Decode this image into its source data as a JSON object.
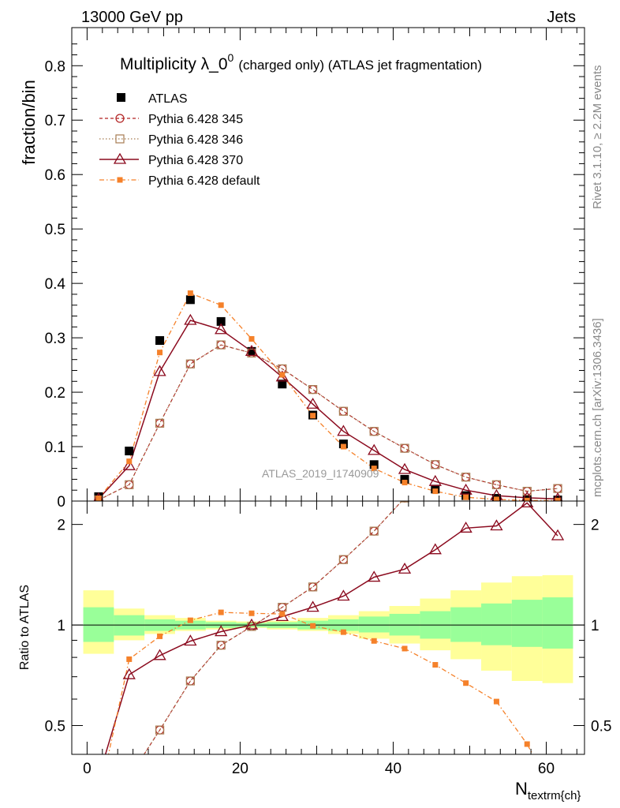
{
  "header": {
    "left": "13000 GeV pp",
    "right": "Jets"
  },
  "side": {
    "rivet": "Rivet 3.1.10, ≥ 2.2M events",
    "mcplots": "mcplots.cern.ch [arXiv:1306.3436]"
  },
  "analysis_id": "ATLAS_2019_I1740909",
  "colors": {
    "atlas": "#000000",
    "p345": "#b22222",
    "p346": "#a67c52",
    "p370": "#8b0a1e",
    "pdefault": "#f5812a",
    "band_inner": "#99ff99",
    "band_outer": "#ffff99"
  },
  "chart_data": [
    {
      "type": "scatter",
      "panel": "main",
      "title_main": "Multiplicity λ_0",
      "title_sup": "0",
      "title_rest": "(charged only) (ATLAS jet fragmentation)",
      "ylabel": "fraction/bin",
      "xlim": [
        -2,
        65
      ],
      "ylim": [
        0,
        0.87
      ],
      "yticks": [
        0,
        0.1,
        0.2,
        0.3,
        0.4,
        0.5,
        0.6,
        0.7,
        0.8
      ],
      "ytick_labels": [
        "0",
        "0.1",
        "0.2",
        "0.3",
        "0.4",
        "0.5",
        "0.6",
        "0.7",
        "0.8"
      ],
      "x": [
        1.5,
        5.5,
        9.5,
        13.5,
        17.5,
        21.5,
        25.5,
        29.5,
        33.5,
        37.5,
        41.5,
        45.5,
        49.5,
        53.5,
        57.5,
        61.5
      ],
      "series": [
        {
          "name": "ATLAS",
          "key": "atlas",
          "values": [
            0.008,
            0.092,
            0.295,
            0.37,
            0.33,
            0.275,
            0.215,
            0.158,
            0.105,
            0.067,
            0.04,
            0.022,
            0.01,
            0.005,
            0.003,
            0.002
          ]
        },
        {
          "name": "Pythia 6.428 345",
          "key": "p345",
          "values": [
            0.002,
            0.03,
            0.143,
            0.252,
            0.287,
            0.272,
            0.243,
            0.205,
            0.165,
            0.128,
            0.097,
            0.067,
            0.044,
            0.03,
            0.018,
            0.023
          ]
        },
        {
          "name": "Pythia 6.428 346",
          "key": "p346",
          "values": [
            0.002,
            0.03,
            0.143,
            0.252,
            0.287,
            0.272,
            0.243,
            0.205,
            0.165,
            0.128,
            0.097,
            0.067,
            0.044,
            0.03,
            0.018,
            0.023
          ]
        },
        {
          "name": "Pythia 6.428 370",
          "key": "p370",
          "values": [
            0.004,
            0.065,
            0.238,
            0.332,
            0.315,
            0.275,
            0.228,
            0.178,
            0.128,
            0.093,
            0.058,
            0.036,
            0.02,
            0.01,
            0.006,
            0.004
          ]
        },
        {
          "name": "Pythia 6.428 default",
          "key": "pdefault",
          "values": [
            0.005,
            0.073,
            0.273,
            0.382,
            0.36,
            0.298,
            0.232,
            0.157,
            0.1,
            0.06,
            0.034,
            0.018,
            0.007,
            0.003,
            0.001,
            0.001
          ]
        }
      ]
    },
    {
      "type": "scatter",
      "panel": "ratio",
      "ylabel": "Ratio to ATLAS",
      "xlabel": "N",
      "xlabel_sub": "textrm{ch}",
      "xlim": [
        -2,
        65
      ],
      "ylim_log": [
        0.41,
        2.35
      ],
      "yticks": [
        0.5,
        1,
        2
      ],
      "ytick_labels": [
        "0.5",
        "1",
        "2"
      ],
      "xticks": [
        0,
        20,
        40,
        60
      ],
      "xtick_labels": [
        "0",
        "20",
        "40",
        "60"
      ],
      "bin_edges": [
        -0.5,
        3.5,
        7.5,
        11.5,
        15.5,
        19.5,
        23.5,
        27.5,
        31.5,
        35.5,
        39.5,
        43.5,
        47.5,
        51.5,
        55.5,
        59.5,
        63.5
      ],
      "band_inner": [
        [
          0.89,
          1.13
        ],
        [
          0.93,
          1.07
        ],
        [
          0.96,
          1.04
        ],
        [
          0.97,
          1.03
        ],
        [
          0.98,
          1.02
        ],
        [
          0.985,
          1.015
        ],
        [
          0.98,
          1.02
        ],
        [
          0.97,
          1.03
        ],
        [
          0.96,
          1.04
        ],
        [
          0.95,
          1.06
        ],
        [
          0.93,
          1.08
        ],
        [
          0.91,
          1.1
        ],
        [
          0.89,
          1.13
        ],
        [
          0.87,
          1.16
        ],
        [
          0.86,
          1.19
        ],
        [
          0.85,
          1.21
        ]
      ],
      "band_outer": [
        [
          0.82,
          1.27
        ],
        [
          0.9,
          1.12
        ],
        [
          0.94,
          1.07
        ],
        [
          0.96,
          1.05
        ],
        [
          0.97,
          1.03
        ],
        [
          0.98,
          1.025
        ],
        [
          0.97,
          1.03
        ],
        [
          0.96,
          1.05
        ],
        [
          0.94,
          1.07
        ],
        [
          0.91,
          1.1
        ],
        [
          0.88,
          1.14
        ],
        [
          0.84,
          1.2
        ],
        [
          0.79,
          1.27
        ],
        [
          0.73,
          1.34
        ],
        [
          0.68,
          1.4
        ],
        [
          0.67,
          1.41
        ]
      ],
      "x": [
        1.5,
        5.5,
        9.5,
        13.5,
        17.5,
        21.5,
        25.5,
        29.5,
        33.5,
        37.5,
        41.5,
        45.5,
        49.5,
        53.5,
        57.5,
        61.5
      ],
      "series": [
        {
          "name": "Pythia 6.428 345",
          "key": "p345",
          "values": [
            0.28,
            0.35,
            0.485,
            0.68,
            0.87,
            0.99,
            1.13,
            1.3,
            1.57,
            1.91,
            2.4,
            null,
            null,
            null,
            null,
            null
          ]
        },
        {
          "name": "Pythia 6.428 346",
          "key": "p346",
          "values": [
            0.28,
            0.35,
            0.485,
            0.68,
            0.87,
            0.99,
            1.13,
            1.3,
            1.57,
            1.91,
            2.4,
            null,
            null,
            null,
            null,
            null
          ]
        },
        {
          "name": "Pythia 6.428 370",
          "key": "p370",
          "values": [
            0.35,
            0.71,
            0.81,
            0.895,
            0.955,
            1.0,
            1.06,
            1.13,
            1.22,
            1.39,
            1.47,
            1.68,
            1.95,
            1.98,
            2.32,
            1.85
          ]
        },
        {
          "name": "Pythia 6.428 default",
          "key": "pdefault",
          "values": [
            0.3,
            0.79,
            0.925,
            1.033,
            1.091,
            1.084,
            1.079,
            0.994,
            0.952,
            0.896,
            0.85,
            0.76,
            0.67,
            0.59,
            0.44,
            0.3
          ]
        }
      ]
    }
  ]
}
